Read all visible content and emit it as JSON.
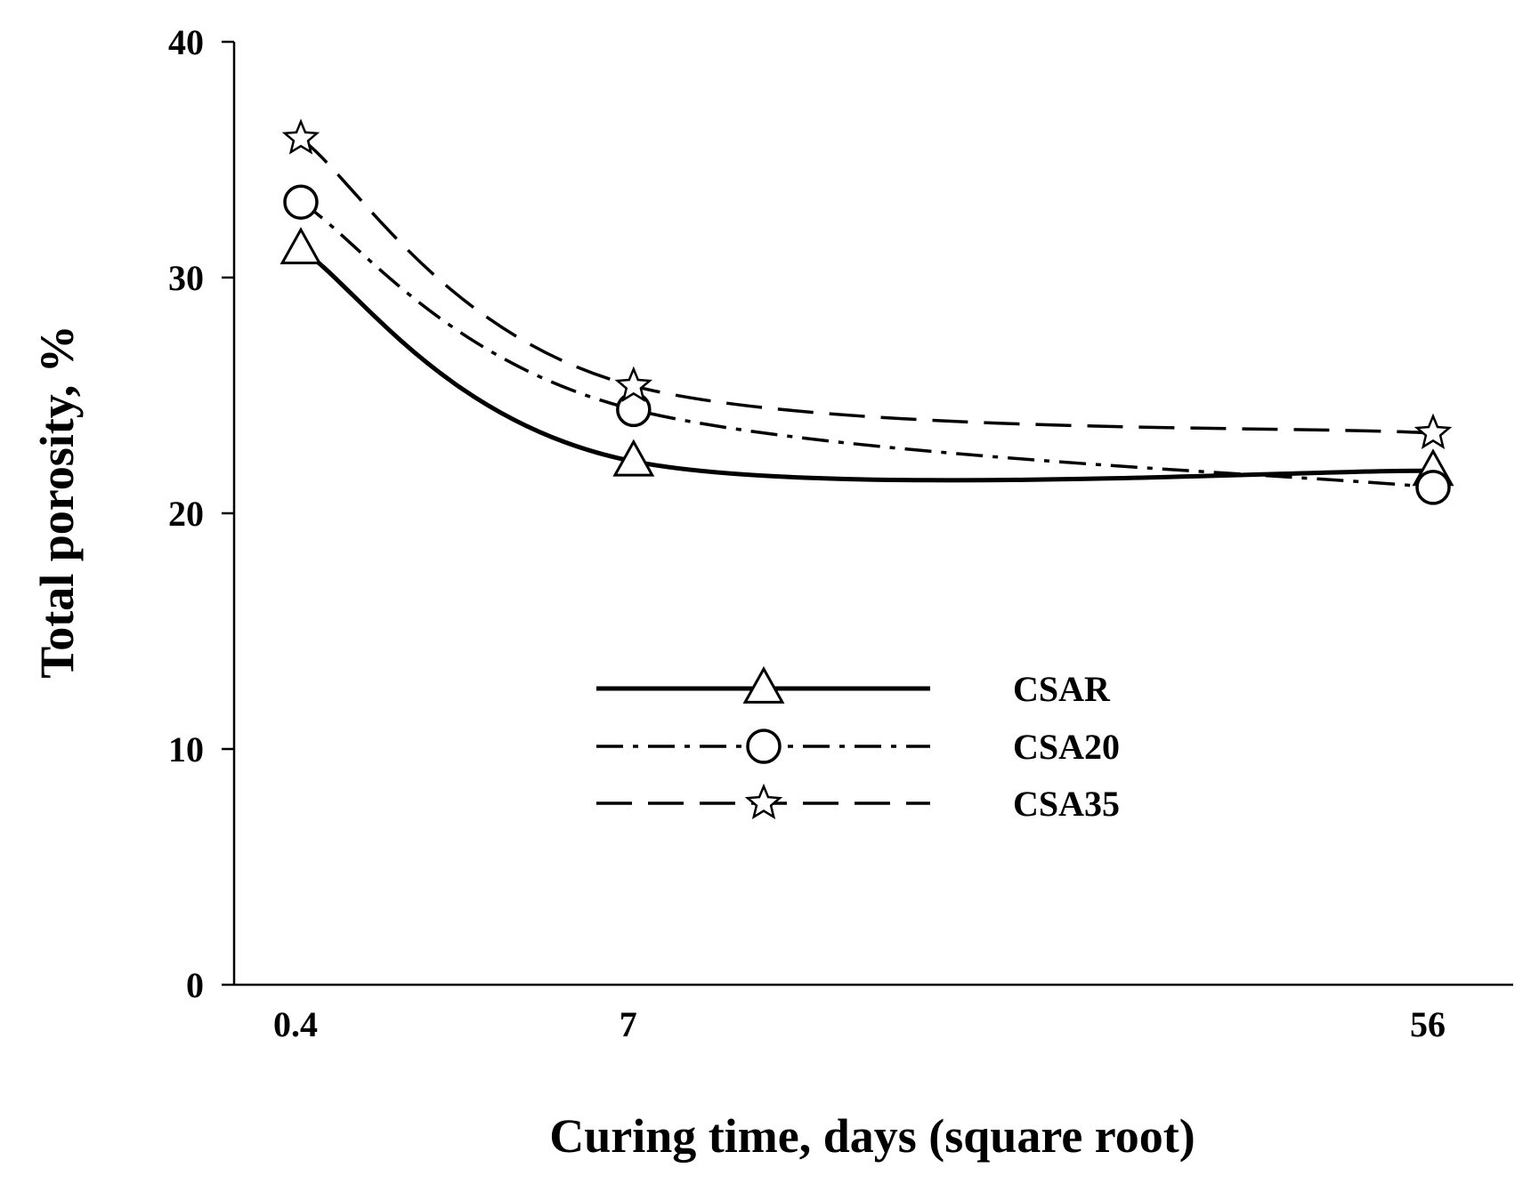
{
  "chart_data": {
    "type": "line",
    "title": "",
    "xlabel": "Curing time, days (square root)",
    "ylabel": "Total porosity, %",
    "x_scale": "square root",
    "x": [
      0.4,
      7,
      56
    ],
    "x_tick_labels": [
      "0.4",
      "7",
      "56"
    ],
    "ylim": [
      0,
      40
    ],
    "y_ticks": [
      0,
      10,
      20,
      30,
      40
    ],
    "grid": false,
    "legend_position": "center",
    "series": [
      {
        "name": "CSAR",
        "marker": "triangle",
        "line_style": "solid",
        "values": [
          31.2,
          22.2,
          21.8
        ]
      },
      {
        "name": "CSA20",
        "marker": "circle",
        "line_style": "dash-dot",
        "values": [
          33.2,
          24.4,
          21.1
        ]
      },
      {
        "name": "CSA35",
        "marker": "star",
        "line_style": "dashed",
        "values": [
          35.9,
          25.4,
          23.4
        ]
      }
    ]
  }
}
